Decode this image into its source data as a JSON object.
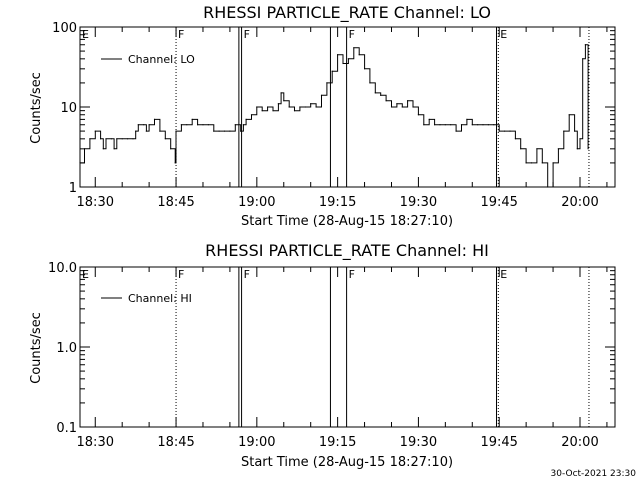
{
  "chart_data": [
    {
      "type": "line",
      "title": "RHESSI PARTICLE_RATE Channel: LO",
      "xlabel": "Start Time (28-Aug-15 18:27:10)",
      "ylabel": "Counts/sec",
      "y_scale": "log",
      "ylim": [
        1,
        100
      ],
      "y_ticks": [
        1,
        10,
        100
      ],
      "y_tick_labels": [
        "1",
        "10",
        "100"
      ],
      "xlim": [
        "18:27:10",
        "20:06:30"
      ],
      "x_ticks": [
        "18:30",
        "18:45",
        "19:00",
        "19:15",
        "19:30",
        "19:45",
        "20:00"
      ],
      "legend": {
        "label": "Channel: LO",
        "placement": "top-left"
      },
      "grid": false,
      "series": [
        {
          "name": "Channel: LO",
          "color": "#000000",
          "x": [
            "18:27:10",
            "18:28:00",
            "18:29:00",
            "18:30:00",
            "18:31:00",
            "18:31:30",
            "18:32:00",
            "18:33:00",
            "18:33:30",
            "18:34:00",
            "18:35:00",
            "18:36:00",
            "18:37:00",
            "18:37:30",
            "18:38:00",
            "18:39:00",
            "18:39:30",
            "18:40:00",
            "18:41:00",
            "18:42:00",
            "18:43:00",
            "18:44:00",
            "18:44:50",
            "18:45:00",
            "18:46:00",
            "18:47:00",
            "18:48:00",
            "18:49:00",
            "18:50:00",
            "18:51:00",
            "18:52:00",
            "18:53:00",
            "18:54:00",
            "18:55:00",
            "18:56:00",
            "18:57:00",
            "18:57:30",
            "18:58:00",
            "18:59:00",
            "19:00:00",
            "19:01:00",
            "19:02:00",
            "19:03:00",
            "19:04:00",
            "19:04:30",
            "19:05:00",
            "19:06:00",
            "19:07:00",
            "19:08:00",
            "19:09:00",
            "19:10:00",
            "19:11:00",
            "19:12:00",
            "19:13:00",
            "19:14:00",
            "19:15:00",
            "19:16:00",
            "19:17:00",
            "19:18:00",
            "19:19:00",
            "19:20:00",
            "19:21:00",
            "19:22:00",
            "19:23:00",
            "19:24:00",
            "19:25:00",
            "19:26:00",
            "19:27:00",
            "19:28:00",
            "19:29:00",
            "19:30:00",
            "19:31:00",
            "19:32:00",
            "19:33:00",
            "19:34:00",
            "19:35:00",
            "19:36:00",
            "19:37:00",
            "19:38:00",
            "19:39:00",
            "19:40:00",
            "19:41:00",
            "19:42:00",
            "19:43:00",
            "19:44:00",
            "19:44:30",
            "19:45:00",
            "19:46:00",
            "19:47:00",
            "19:48:00",
            "19:49:00",
            "19:50:00",
            "19:51:00",
            "19:52:00",
            "19:53:00",
            "19:54:00",
            "19:55:00",
            "19:56:00",
            "19:57:00",
            "19:58:00",
            "19:59:00",
            "19:59:30",
            "20:00:00",
            "20:00:30",
            "20:01:00",
            "20:01:30"
          ],
          "values": [
            2,
            3,
            4,
            5,
            4,
            3,
            4,
            4,
            3,
            4,
            4,
            4,
            4,
            5,
            6,
            6,
            5,
            6,
            7,
            5,
            4,
            3,
            2,
            5,
            6,
            6,
            7,
            6,
            6,
            6,
            5,
            5,
            5,
            5,
            6,
            5,
            6,
            7,
            8,
            10,
            9,
            10,
            9,
            11,
            15,
            12,
            10,
            9,
            10,
            10,
            11,
            10,
            14,
            20,
            28,
            45,
            35,
            40,
            55,
            45,
            30,
            20,
            15,
            14,
            12,
            10,
            11,
            10,
            12,
            10,
            8,
            6,
            7,
            6,
            6,
            6,
            6,
            5,
            6,
            7,
            6,
            6,
            6,
            6,
            6,
            6,
            5,
            5,
            5,
            4,
            3,
            2,
            2,
            3,
            2,
            1,
            2,
            3,
            5,
            8,
            5,
            3,
            4,
            40,
            60,
            3
          ]
        }
      ],
      "event_markers": [
        {
          "label": "E",
          "at": "18:27:10",
          "style": "dotted"
        },
        {
          "label": "F",
          "at": "18:45:00",
          "style": "dotted"
        },
        {
          "label": "",
          "at": "18:56:40",
          "style": "solid"
        },
        {
          "label": "F",
          "at": "18:57:10",
          "style": "solid"
        },
        {
          "label": "",
          "at": "19:13:40",
          "style": "solid"
        },
        {
          "label": "F",
          "at": "19:16:40",
          "style": "solid"
        },
        {
          "label": "",
          "at": "19:44:30",
          "style": "solid"
        },
        {
          "label": "E",
          "at": "19:44:50",
          "style": "dotted"
        },
        {
          "label": "",
          "at": "20:01:40",
          "style": "dotted"
        }
      ]
    },
    {
      "type": "line",
      "title": "RHESSI PARTICLE_RATE Channel: HI",
      "xlabel": "Start Time (28-Aug-15 18:27:10)",
      "ylabel": "Counts/sec",
      "y_scale": "log",
      "ylim": [
        0.1,
        10
      ],
      "y_ticks": [
        0.1,
        1,
        10
      ],
      "y_tick_labels": [
        "0.1",
        "1.0",
        "10.0"
      ],
      "xlim": [
        "18:27:10",
        "20:06:30"
      ],
      "x_ticks": [
        "18:30",
        "18:45",
        "19:00",
        "19:15",
        "19:30",
        "19:45",
        "20:00"
      ],
      "legend": {
        "label": "Channel: HI",
        "placement": "top-left"
      },
      "grid": false,
      "series": [
        {
          "name": "Channel: HI",
          "color": "#000000",
          "x": [],
          "values": []
        }
      ],
      "event_markers": [
        {
          "label": "E",
          "at": "18:27:10",
          "style": "dotted"
        },
        {
          "label": "F",
          "at": "18:45:00",
          "style": "dotted"
        },
        {
          "label": "",
          "at": "18:56:40",
          "style": "solid"
        },
        {
          "label": "F",
          "at": "18:57:10",
          "style": "solid"
        },
        {
          "label": "",
          "at": "19:13:40",
          "style": "solid"
        },
        {
          "label": "F",
          "at": "19:16:40",
          "style": "solid"
        },
        {
          "label": "",
          "at": "19:44:30",
          "style": "solid"
        },
        {
          "label": "E",
          "at": "19:44:50",
          "style": "dotted"
        },
        {
          "label": "",
          "at": "20:01:40",
          "style": "dotted"
        }
      ]
    }
  ],
  "timestamp": "30-Oct-2021 23:30"
}
